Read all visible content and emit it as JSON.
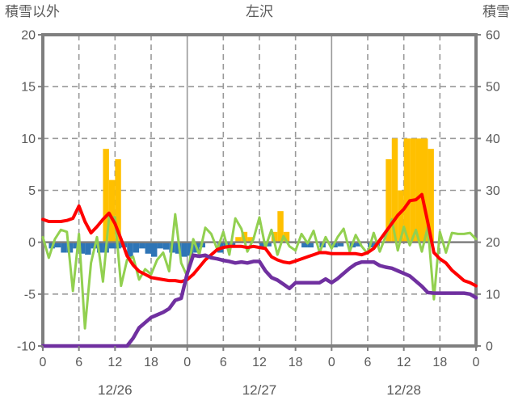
{
  "header": {
    "left_axis_title": "積雪以外",
    "chart_title": "左沢",
    "right_axis_title": "積雪"
  },
  "chart_data": {
    "type": "bar+line combo, hourly weather observations over 3 days",
    "total_hours": 72,
    "x_tick_hours": [
      0,
      6,
      12,
      18,
      24,
      30,
      36,
      42,
      48,
      54,
      60,
      66,
      72
    ],
    "x_tick_labels": [
      "0",
      "6",
      "12",
      "18",
      "0",
      "6",
      "12",
      "18",
      "0",
      "6",
      "12",
      "18",
      "0"
    ],
    "date_labels": [
      {
        "label": "12/26",
        "center_hour": 12
      },
      {
        "label": "12/27",
        "center_hour": 36
      },
      {
        "label": "12/28",
        "center_hour": 60
      }
    ],
    "left_axis": {
      "title": "積雪以外",
      "range": [
        -10,
        20
      ],
      "ticks": [
        20,
        15,
        10,
        5,
        0,
        -5,
        -10
      ]
    },
    "right_axis": {
      "title": "積雪",
      "range": [
        0,
        60
      ],
      "ticks": [
        60,
        50,
        40,
        30,
        20,
        10,
        0
      ]
    },
    "grid": {
      "h_dashed_left_values": [
        15,
        10,
        5,
        -5
      ],
      "v_dashed_every_hours": 6,
      "v_solid_day_boundaries": [
        24,
        48
      ]
    },
    "series": [
      {
        "name": "orange-bars",
        "type": "bar",
        "axis": "left",
        "color": "#FFC000",
        "values_by_hour": {
          "10": 9,
          "11": 6,
          "12": 8,
          "32": 0.5,
          "33": 1,
          "34": 0.5,
          "38": 1,
          "39": 3,
          "40": 1,
          "57": 8,
          "58": 10,
          "59": 5,
          "60": 10,
          "61": 10,
          "62": 10,
          "63": 10,
          "64": 9
        }
      },
      {
        "name": "blue-bars",
        "type": "bar",
        "axis": "left",
        "color": "#2E75B6",
        "values_by_hour": {
          "1": -0.6,
          "2": -0.5,
          "3": -1,
          "4": -1,
          "5": -0.6,
          "6": -1.1,
          "7": -1.2,
          "8": -0.6,
          "9": -1,
          "10": -1,
          "11": -0.6,
          "12": -0.6,
          "13": -0.5,
          "14": -1.4,
          "15": -1,
          "16": -0.6,
          "17": -1.1,
          "18": -1.4,
          "19": -0.6,
          "20": -0.7,
          "21": -1,
          "22": -1.1,
          "23": -1.4,
          "24": -1.3,
          "25": -1,
          "26": -0.5,
          "29": -1,
          "30": -0.6,
          "31": -0.4,
          "36": -0.5,
          "37": -0.4,
          "43": -0.5,
          "44": -0.5,
          "46": -0.5,
          "48": -0.5,
          "49": -0.4,
          "51": -0.5,
          "52": -0.4,
          "54": -0.5,
          "55": -0.4
        }
      },
      {
        "name": "green-line",
        "type": "line",
        "axis": "left",
        "color": "#92D050",
        "width": 3,
        "hourly": [
          0.5,
          -1.5,
          0.3,
          1.2,
          1.0,
          -4.7,
          0.8,
          -8.3,
          -2.0,
          0.5,
          -3.8,
          2.4,
          2.4,
          -4.2,
          -1.7,
          -1.4,
          -3.6,
          -2.6,
          -3.1,
          -1.7,
          -1.0,
          -2.8,
          2.7,
          -2.0,
          -3.3,
          0.3,
          -1.2,
          1.4,
          0.8,
          -0.7,
          1.0,
          -1.2,
          2.3,
          1.3,
          -0.9,
          0.3,
          2.4,
          -0.5,
          1.2,
          -1.2,
          0.6,
          -0.4,
          -0.8,
          0.8,
          -0.1,
          1.1,
          -1.0,
          0.5,
          -0.6,
          0.5,
          1.3,
          -0.9,
          0.7,
          -0.4,
          -1.1,
          0.9,
          -0.9,
          0.6,
          2.2,
          -0.8,
          1.5,
          -0.3,
          1.2,
          -0.9,
          1.5,
          -5.5,
          1.0,
          -1.0,
          0.9,
          0.8,
          0.8,
          0.9,
          0.3
        ]
      },
      {
        "name": "red-line",
        "type": "line",
        "axis": "left",
        "color": "#FF0000",
        "width": 4,
        "hourly": [
          2.2,
          2.0,
          2.0,
          2.0,
          2.1,
          2.3,
          3.5,
          2.0,
          0.9,
          1.5,
          2.2,
          2.8,
          1.8,
          0.3,
          -1.3,
          -2.2,
          -2.8,
          -3.1,
          -3.4,
          -3.5,
          -3.6,
          -3.7,
          -3.7,
          -3.8,
          -3.6,
          -3.1,
          -2.4,
          -1.7,
          -1.2,
          -0.7,
          -0.5,
          -0.4,
          -0.4,
          -0.4,
          -0.5,
          -0.4,
          -0.5,
          -0.6,
          -1.4,
          -1.7,
          -1.9,
          -2.0,
          -1.8,
          -1.6,
          -1.4,
          -1.2,
          -1.0,
          -1.0,
          -1.1,
          -1.1,
          -1.1,
          -1.1,
          -1.1,
          -1.2,
          -1.0,
          -0.6,
          0.2,
          1.0,
          1.8,
          2.6,
          3.2,
          4.0,
          4.1,
          4.6,
          1.9,
          -1.0,
          -1.6,
          -2.0,
          -2.7,
          -3.2,
          -3.7,
          -3.9,
          -4.2
        ]
      },
      {
        "name": "purple-line",
        "type": "line",
        "axis": "right",
        "color": "#7030A0",
        "width": 4.5,
        "hourly": [
          0,
          0,
          0,
          0,
          0,
          0,
          0,
          0,
          0,
          0,
          0,
          0,
          0,
          0,
          0,
          1.5,
          3.5,
          4.5,
          5.5,
          6.0,
          6.5,
          7.2,
          8.8,
          9.2,
          14.0,
          17.5,
          17.3,
          17.5,
          17.0,
          16.8,
          16.5,
          16.3,
          16.0,
          16.2,
          16.0,
          16.3,
          16.3,
          14.5,
          13.2,
          12.7,
          11.9,
          11.1,
          12.2,
          12.2,
          12.2,
          12.2,
          12.2,
          12.9,
          12.2,
          13.0,
          14.0,
          15.0,
          15.8,
          16.2,
          16.2,
          16.2,
          15.5,
          15.2,
          15.0,
          14.5,
          14.0,
          13.5,
          12.5,
          11.5,
          10.3,
          10.2,
          10.2,
          10.2,
          10.2,
          10.2,
          10.2,
          10.0,
          9.3
        ]
      }
    ],
    "styles": {
      "plot_border_color": "#7F7F7F",
      "zero_line_color": "#7F7F7F",
      "gridline_color": "#999999",
      "tick_text_color": "#595959",
      "background": "#FFFFFF"
    }
  }
}
